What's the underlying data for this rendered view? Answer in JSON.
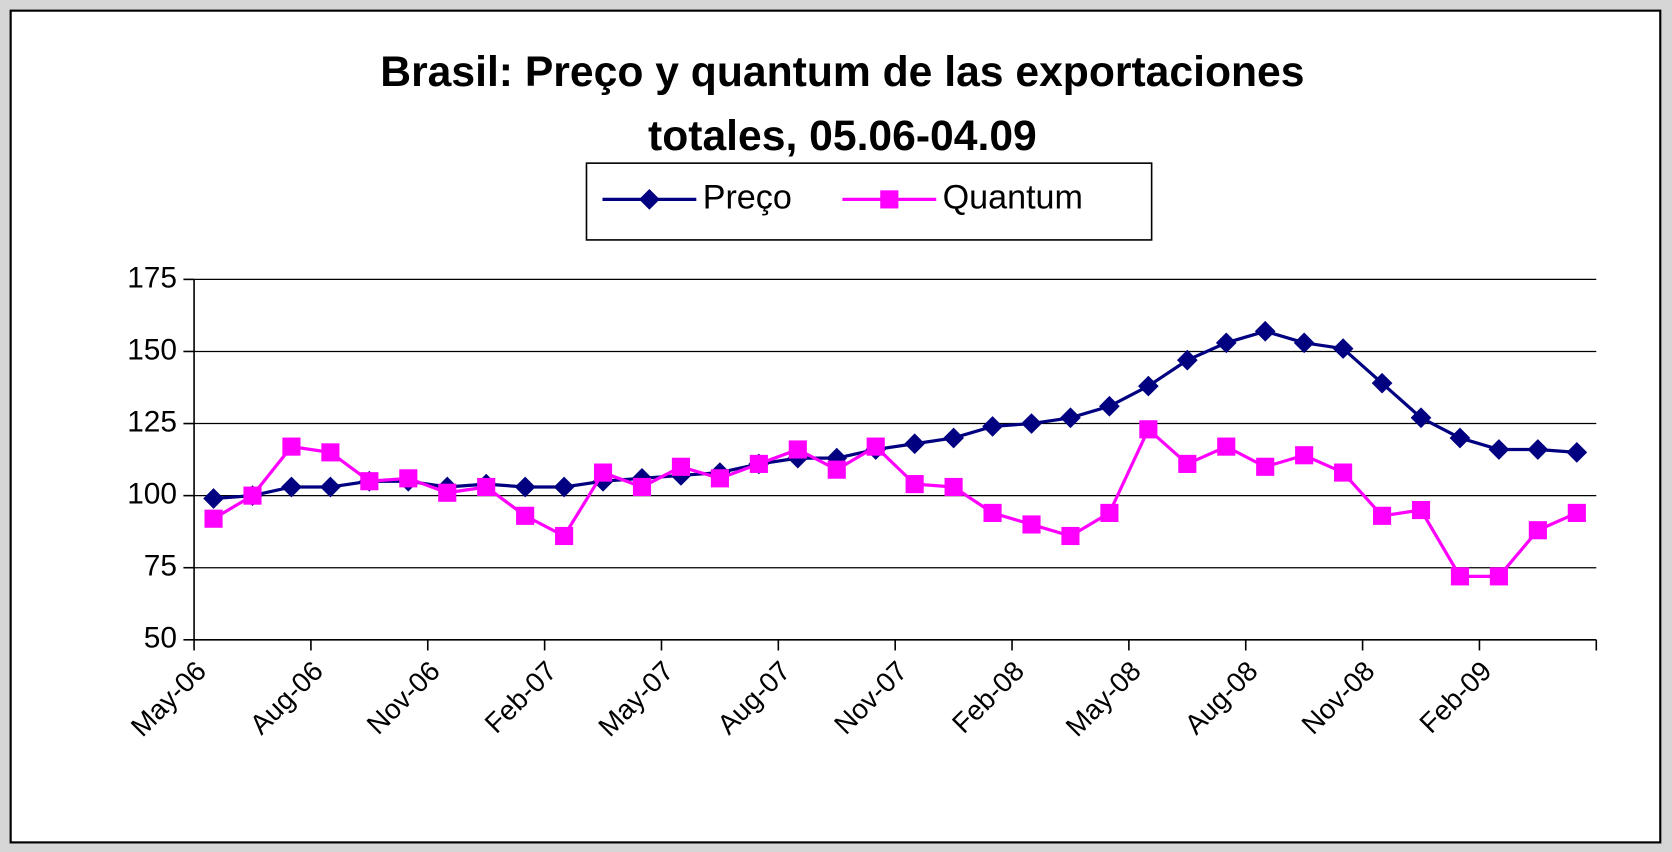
{
  "chart_data": {
    "type": "line",
    "title": [
      "Brasil: Preço y quantum de las exportaciones",
      "totales, 05.06-04.09"
    ],
    "categories": [
      "May-06",
      null,
      null,
      "Aug-06",
      null,
      null,
      "Nov-06",
      null,
      null,
      "Feb-07",
      null,
      null,
      "May-07",
      null,
      null,
      "Aug-07",
      null,
      null,
      "Nov-07",
      null,
      null,
      "Feb-08",
      null,
      null,
      "May-08",
      null,
      null,
      "Aug-08",
      null,
      null,
      "Nov-08",
      null,
      null,
      "Feb-09",
      null,
      null
    ],
    "series": [
      {
        "name": "Preço",
        "color": "#000080",
        "marker": "diamond",
        "values": [
          99,
          100,
          103,
          103,
          105,
          105,
          103,
          104,
          103,
          103,
          105,
          106,
          107,
          108,
          111,
          113,
          113,
          116,
          118,
          120,
          124,
          125,
          127,
          131,
          138,
          147,
          153,
          157,
          153,
          151,
          139,
          127,
          120,
          116,
          116,
          115
        ]
      },
      {
        "name": "Quantum",
        "color": "#ff00ff",
        "marker": "square",
        "values": [
          92,
          100,
          117,
          115,
          105,
          106,
          101,
          103,
          93,
          86,
          108,
          103,
          110,
          106,
          111,
          116,
          109,
          117,
          104,
          103,
          94,
          90,
          86,
          94,
          123,
          111,
          117,
          110,
          114,
          108,
          93,
          95,
          72,
          72,
          88,
          94
        ]
      }
    ],
    "ylim": [
      50,
      175
    ],
    "yticks": [
      50,
      75,
      100,
      125,
      150,
      175
    ],
    "grid": true,
    "legend": "top"
  }
}
